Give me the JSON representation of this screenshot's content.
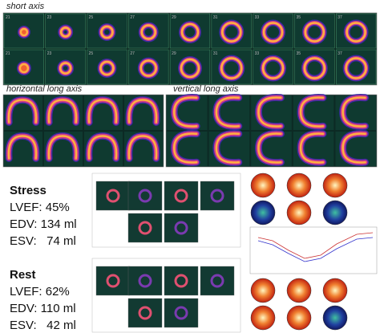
{
  "short_axis": {
    "label": "short axis",
    "numbers": [
      "21",
      "23",
      "25",
      "27",
      "29",
      "31",
      "33",
      "35",
      "37"
    ]
  },
  "horizontal_long_axis": {
    "label": "horizontal long axis"
  },
  "vertical_long_axis": {
    "label": "vertical long axis"
  },
  "stress": {
    "title": "Stress",
    "lvef": "LVEF: 45%",
    "edv": "EDV: 134 ml",
    "esv": "ESV:   74 ml"
  },
  "rest": {
    "title": "Rest",
    "lvef": "LVEF: 62%",
    "edv": "EDV: 110 ml",
    "esv": "ESV:   42 ml"
  }
}
